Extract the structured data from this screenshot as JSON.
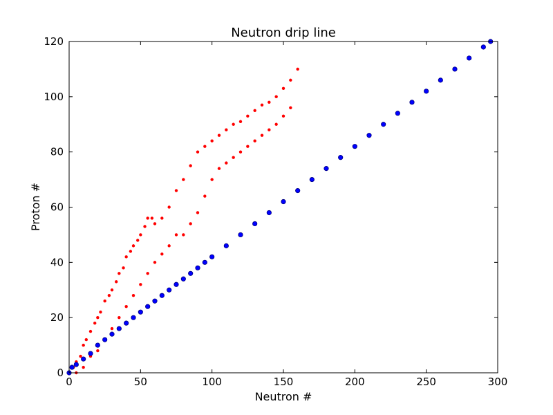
{
  "chart_data": {
    "type": "scatter",
    "title": "Neutron drip line",
    "xlabel": "Neutron #",
    "ylabel": "Proton #",
    "xlim": [
      0,
      300
    ],
    "ylim": [
      0,
      120
    ],
    "xticks": [
      0,
      50,
      100,
      150,
      200,
      250,
      300
    ],
    "yticks": [
      0,
      20,
      40,
      60,
      80,
      100,
      120
    ],
    "xtick_labels": [
      "0",
      "50",
      "100",
      "150",
      "200",
      "250",
      "300"
    ],
    "ytick_labels": [
      "0",
      "20",
      "40",
      "60",
      "80",
      "100",
      "120"
    ],
    "grid": false,
    "legend": "none",
    "series": [
      {
        "color": "#ff0000",
        "marker": "dot",
        "points": [
          [
            0,
            0
          ],
          [
            3,
            2
          ],
          [
            5,
            4
          ],
          [
            8,
            6
          ],
          [
            10,
            10
          ],
          [
            12,
            12
          ],
          [
            15,
            15
          ],
          [
            18,
            18
          ],
          [
            20,
            20
          ],
          [
            22,
            22
          ],
          [
            25,
            26
          ],
          [
            28,
            28
          ],
          [
            30,
            30
          ],
          [
            33,
            33
          ],
          [
            35,
            36
          ],
          [
            38,
            38
          ],
          [
            40,
            42
          ],
          [
            43,
            44
          ],
          [
            45,
            46
          ],
          [
            48,
            48
          ],
          [
            50,
            50
          ],
          [
            53,
            53
          ],
          [
            55,
            56
          ],
          [
            58,
            56
          ],
          [
            60,
            54
          ],
          [
            65,
            56
          ],
          [
            70,
            60
          ],
          [
            75,
            66
          ],
          [
            80,
            70
          ],
          [
            85,
            75
          ],
          [
            90,
            80
          ],
          [
            95,
            82
          ],
          [
            100,
            84
          ],
          [
            105,
            86
          ],
          [
            110,
            88
          ],
          [
            115,
            90
          ],
          [
            120,
            91
          ],
          [
            125,
            93
          ],
          [
            130,
            95
          ],
          [
            135,
            97
          ],
          [
            140,
            98
          ],
          [
            145,
            100
          ],
          [
            150,
            103
          ],
          [
            155,
            106
          ],
          [
            160,
            110
          ],
          [
            5,
            0
          ],
          [
            10,
            2
          ],
          [
            15,
            6
          ],
          [
            20,
            8
          ],
          [
            25,
            12
          ],
          [
            30,
            16
          ],
          [
            35,
            20
          ],
          [
            40,
            24
          ],
          [
            45,
            28
          ],
          [
            50,
            32
          ],
          [
            55,
            36
          ],
          [
            60,
            40
          ],
          [
            65,
            43
          ],
          [
            70,
            46
          ],
          [
            75,
            50
          ],
          [
            80,
            50
          ],
          [
            85,
            54
          ],
          [
            90,
            58
          ],
          [
            95,
            64
          ],
          [
            100,
            70
          ],
          [
            105,
            74
          ],
          [
            110,
            76
          ],
          [
            115,
            78
          ],
          [
            120,
            80
          ],
          [
            125,
            82
          ],
          [
            130,
            84
          ],
          [
            135,
            86
          ],
          [
            140,
            88
          ],
          [
            145,
            90
          ],
          [
            150,
            93
          ],
          [
            155,
            96
          ]
        ]
      },
      {
        "color": "#0000ff",
        "marker": "circle",
        "points": [
          [
            0,
            0
          ],
          [
            2,
            2
          ],
          [
            5,
            3
          ],
          [
            10,
            5
          ],
          [
            15,
            7
          ],
          [
            20,
            10
          ],
          [
            25,
            12
          ],
          [
            30,
            14
          ],
          [
            35,
            16
          ],
          [
            40,
            18
          ],
          [
            45,
            20
          ],
          [
            50,
            22
          ],
          [
            55,
            24
          ],
          [
            60,
            26
          ],
          [
            65,
            28
          ],
          [
            70,
            30
          ],
          [
            75,
            32
          ],
          [
            80,
            34
          ],
          [
            85,
            36
          ],
          [
            90,
            38
          ],
          [
            95,
            40
          ],
          [
            100,
            42
          ],
          [
            110,
            46
          ],
          [
            120,
            50
          ],
          [
            130,
            54
          ],
          [
            140,
            58
          ],
          [
            150,
            62
          ],
          [
            160,
            66
          ],
          [
            170,
            70
          ],
          [
            180,
            74
          ],
          [
            190,
            78
          ],
          [
            200,
            82
          ],
          [
            210,
            86
          ],
          [
            220,
            90
          ],
          [
            230,
            94
          ],
          [
            240,
            98
          ],
          [
            250,
            102
          ],
          [
            260,
            106
          ],
          [
            270,
            110
          ],
          [
            280,
            114
          ],
          [
            290,
            118
          ],
          [
            295,
            120
          ]
        ]
      }
    ]
  }
}
